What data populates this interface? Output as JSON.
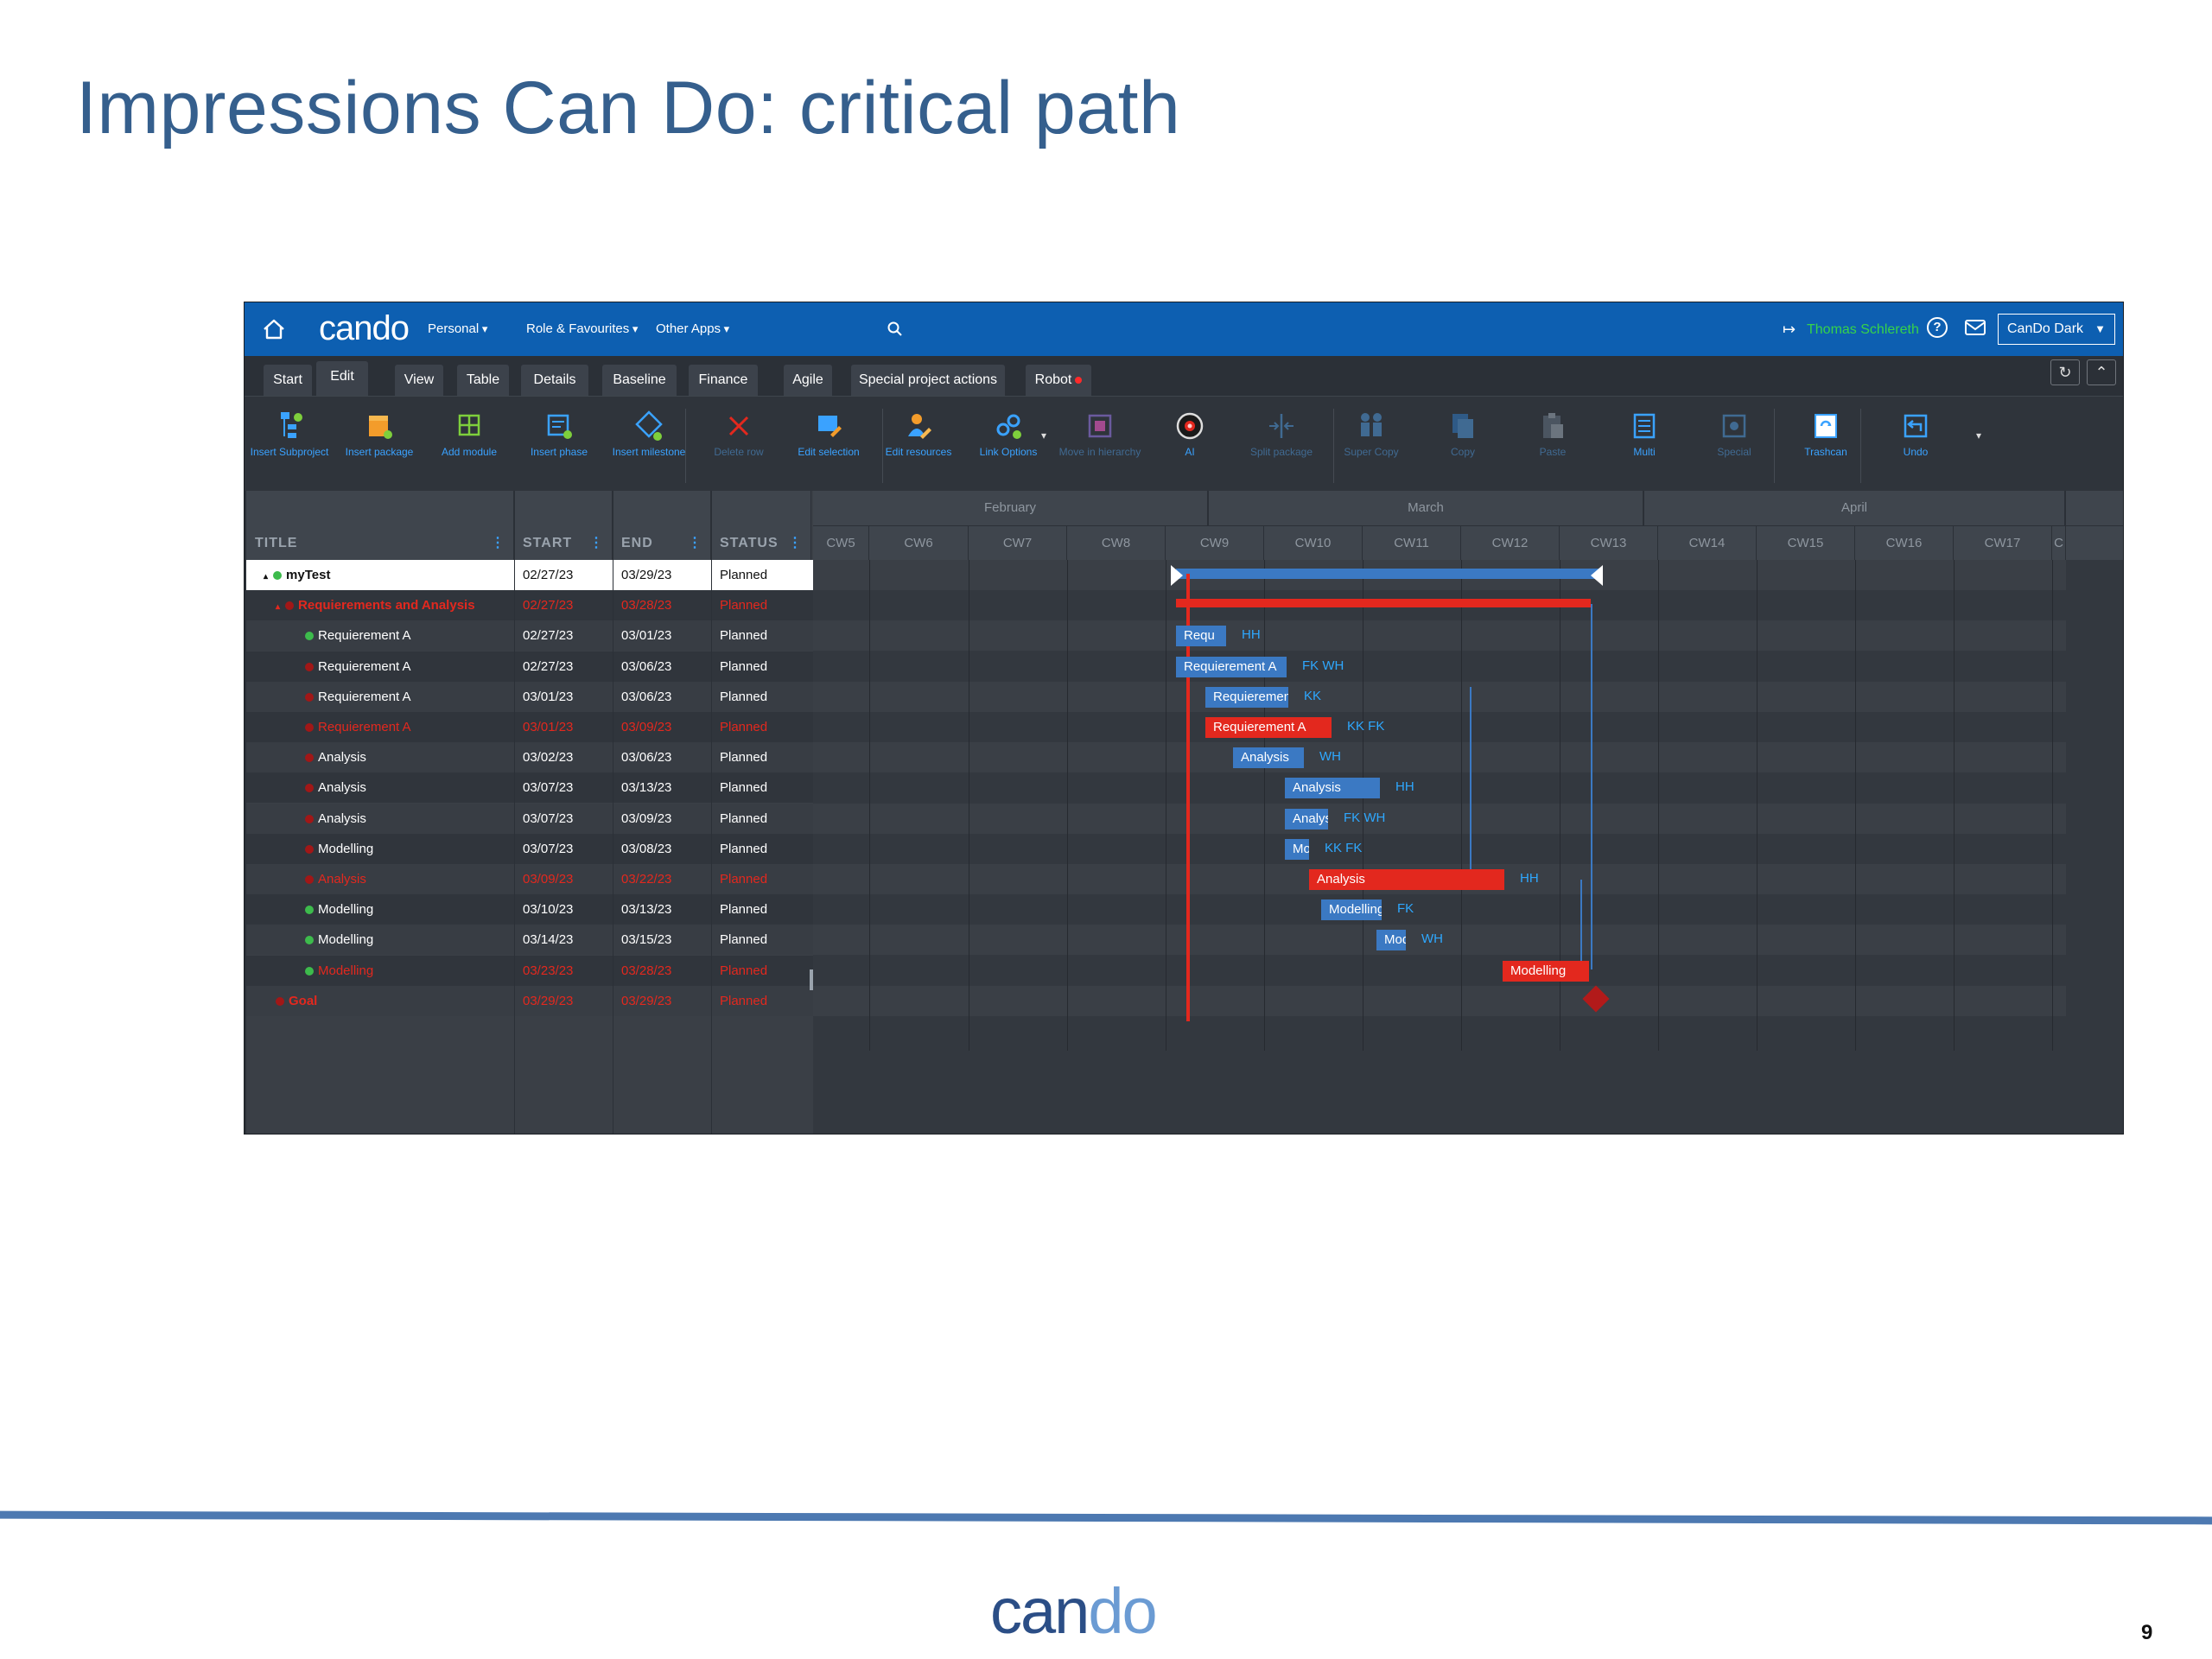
{
  "slide": {
    "title": "Impressions Can Do: critical path",
    "page_number": "9",
    "footer_logo": {
      "part1": "can",
      "part2": "do"
    }
  },
  "app": {
    "logo": {
      "part1": "can",
      "part2": "do"
    },
    "nav": [
      "Personal",
      "Role & Favourites",
      "Other Apps"
    ],
    "user_name": "Thomas Schlereth",
    "theme": "CanDo Dark",
    "tabs": [
      "Start",
      "Edit",
      "View",
      "Table",
      "Details",
      "Baseline",
      "Finance",
      "Agile",
      "Special project actions",
      "Robot"
    ],
    "active_tab": "Edit",
    "ribbon": [
      {
        "label": "Insert Subproject",
        "icon": "insert-subproject-icon",
        "enabled": true
      },
      {
        "label": "Insert package",
        "icon": "insert-package-icon",
        "enabled": true
      },
      {
        "label": "Add module",
        "icon": "add-module-icon",
        "enabled": true
      },
      {
        "label": "Insert phase",
        "icon": "insert-phase-icon",
        "enabled": true
      },
      {
        "label": "Insert milestone",
        "icon": "insert-milestone-icon",
        "enabled": true
      },
      {
        "label": "Delete row",
        "icon": "delete-row-icon",
        "enabled": false
      },
      {
        "label": "Edit selection",
        "icon": "edit-selection-icon",
        "enabled": true
      },
      {
        "label": "Edit resources",
        "icon": "edit-resources-icon",
        "enabled": true
      },
      {
        "label": "Link Options",
        "icon": "link-options-icon",
        "enabled": true
      },
      {
        "label": "Move in hierarchy",
        "icon": "move-hierarchy-icon",
        "enabled": false
      },
      {
        "label": "AI",
        "icon": "ai-icon",
        "enabled": true
      },
      {
        "label": "Split package",
        "icon": "split-package-icon",
        "enabled": false
      },
      {
        "label": "Super Copy",
        "icon": "super-copy-icon",
        "enabled": false
      },
      {
        "label": "Copy",
        "icon": "copy-icon",
        "enabled": false
      },
      {
        "label": "Paste",
        "icon": "paste-icon",
        "enabled": false
      },
      {
        "label": "Multi",
        "icon": "multi-icon",
        "enabled": true
      },
      {
        "label": "Special",
        "icon": "special-icon",
        "enabled": false
      },
      {
        "label": "Trashcan",
        "icon": "trashcan-icon",
        "enabled": true
      },
      {
        "label": "Undo",
        "icon": "undo-icon",
        "enabled": true
      }
    ],
    "columns": [
      "TITLE",
      "START",
      "END",
      "STATUS"
    ],
    "rows": [
      {
        "title": "myTest",
        "start": "02/27/23",
        "end": "03/29/23",
        "status": "Planned",
        "bullet": "green",
        "level": 0,
        "critical": false,
        "selected": true,
        "expander": "▴"
      },
      {
        "title": "Requierements and Analysis",
        "start": "02/27/23",
        "end": "03/28/23",
        "status": "Planned",
        "bullet": "red",
        "level": 1,
        "critical": true,
        "selected": false,
        "expander": "▴"
      },
      {
        "title": "Requierement A",
        "start": "02/27/23",
        "end": "03/01/23",
        "status": "Planned",
        "bullet": "green",
        "level": 2,
        "critical": false,
        "selected": false
      },
      {
        "title": "Requierement A",
        "start": "02/27/23",
        "end": "03/06/23",
        "status": "Planned",
        "bullet": "red",
        "level": 2,
        "critical": false,
        "selected": false
      },
      {
        "title": "Requierement A",
        "start": "03/01/23",
        "end": "03/06/23",
        "status": "Planned",
        "bullet": "red",
        "level": 2,
        "critical": false,
        "selected": false
      },
      {
        "title": "Requierement A",
        "start": "03/01/23",
        "end": "03/09/23",
        "status": "Planned",
        "bullet": "red",
        "level": 2,
        "critical": true,
        "selected": false
      },
      {
        "title": "Analysis",
        "start": "03/02/23",
        "end": "03/06/23",
        "status": "Planned",
        "bullet": "red",
        "level": 2,
        "critical": false,
        "selected": false
      },
      {
        "title": "Analysis",
        "start": "03/07/23",
        "end": "03/13/23",
        "status": "Planned",
        "bullet": "red",
        "level": 2,
        "critical": false,
        "selected": false
      },
      {
        "title": "Analysis",
        "start": "03/07/23",
        "end": "03/09/23",
        "status": "Planned",
        "bullet": "red",
        "level": 2,
        "critical": false,
        "selected": false
      },
      {
        "title": "Modelling",
        "start": "03/07/23",
        "end": "03/08/23",
        "status": "Planned",
        "bullet": "red",
        "level": 2,
        "critical": false,
        "selected": false
      },
      {
        "title": "Analysis",
        "start": "03/09/23",
        "end": "03/22/23",
        "status": "Planned",
        "bullet": "red",
        "level": 2,
        "critical": true,
        "selected": false
      },
      {
        "title": "Modelling",
        "start": "03/10/23",
        "end": "03/13/23",
        "status": "Planned",
        "bullet": "green",
        "level": 2,
        "critical": false,
        "selected": false
      },
      {
        "title": "Modelling",
        "start": "03/14/23",
        "end": "03/15/23",
        "status": "Planned",
        "bullet": "green",
        "level": 2,
        "critical": false,
        "selected": false
      },
      {
        "title": "Modelling",
        "start": "03/23/23",
        "end": "03/28/23",
        "status": "Planned",
        "bullet": "green",
        "level": 2,
        "critical": true,
        "selected": false
      },
      {
        "title": "Goal",
        "start": "03/29/23",
        "end": "03/29/23",
        "status": "Planned",
        "bullet": "red",
        "level": 1,
        "critical": true,
        "selected": false
      }
    ],
    "months": [
      "February",
      "March",
      "April"
    ],
    "weeks": [
      "CW5",
      "CW6",
      "CW7",
      "CW8",
      "CW9",
      "CW10",
      "CW11",
      "CW12",
      "CW13",
      "CW14",
      "CW15",
      "CW16",
      "CW17",
      "C"
    ],
    "bars": [
      {
        "row": 2,
        "label": "Requ",
        "critical": false,
        "dep": "HH"
      },
      {
        "row": 3,
        "label": "Requierement A",
        "critical": false,
        "dep": "FK  WH"
      },
      {
        "row": 4,
        "label": "Requierement A",
        "critical": false,
        "dep": "KK"
      },
      {
        "row": 5,
        "label": "Requierement A",
        "critical": true,
        "dep": "KK  FK"
      },
      {
        "row": 6,
        "label": "Analysis",
        "critical": false,
        "dep": "WH"
      },
      {
        "row": 7,
        "label": "Analysis",
        "critical": false,
        "dep": "HH"
      },
      {
        "row": 8,
        "label": "Analysis",
        "critical": false,
        "dep": "FK  WH"
      },
      {
        "row": 9,
        "label": "Modelling",
        "critical": false,
        "dep": "KK  FK"
      },
      {
        "row": 10,
        "label": "Analysis",
        "critical": true,
        "dep": "HH"
      },
      {
        "row": 11,
        "label": "Modelling",
        "critical": false,
        "dep": "FK"
      },
      {
        "row": 12,
        "label": "Modelling",
        "critical": false,
        "dep": "WH"
      },
      {
        "row": 13,
        "label": "Modelling",
        "critical": true,
        "dep": ""
      }
    ],
    "colors": {
      "topbar": "#0d5fb1",
      "accent": "#3aa2ff",
      "critical": "#e3281e",
      "bar": "#3b79c3",
      "status_green": "#3dbb4c"
    }
  }
}
